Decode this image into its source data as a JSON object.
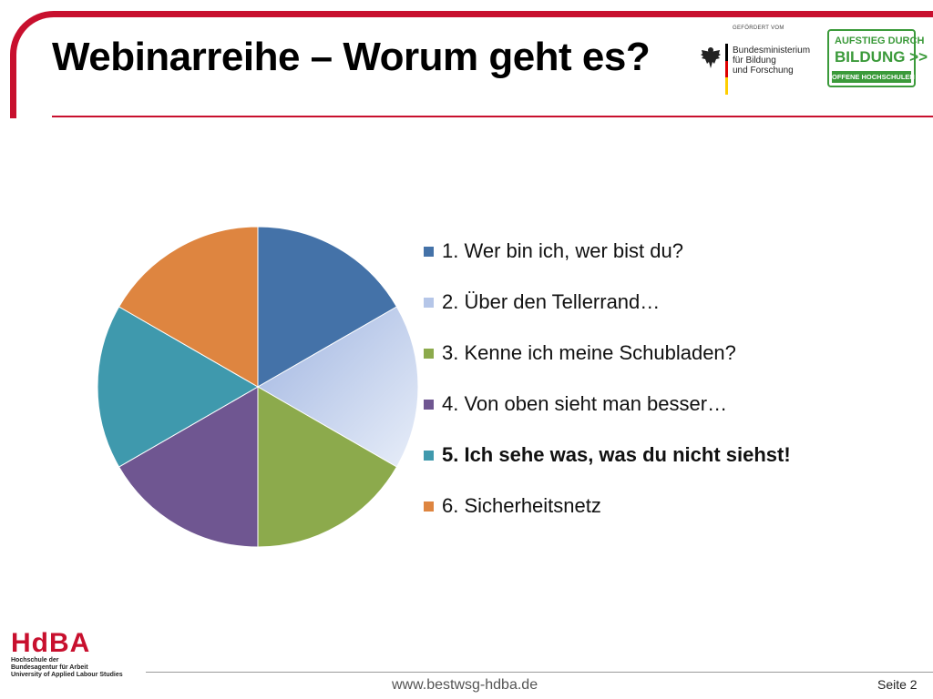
{
  "slide": {
    "title": "Webinarreihe – Worum geht es?",
    "accent_color": "#c8102e"
  },
  "sponsor": {
    "caption": "GEFÖRDERT VOM",
    "ministry_lines": [
      "Bundesministerium",
      "für Bildung",
      "und Forschung"
    ],
    "eagle_icon": "federal-eagle-icon"
  },
  "aufstieg_logo": {
    "line1": "AUFSTIEG DURCH",
    "line2": "BILDUNG >>",
    "line3": "OFFENE HOCHSCHULEN",
    "color": "#3b9a3a"
  },
  "chart_data": {
    "type": "pie",
    "title": "",
    "categories": [
      "1.  Wer bin ich, wer bist du?",
      "2. Über den Tellerrand…",
      "3. Kenne ich meine Schubladen?",
      "4. Von oben sieht man besser…",
      "5. Ich sehe was, was du nicht siehst!",
      "6. Sicherheitsnetz"
    ],
    "values": [
      1,
      1,
      1,
      1,
      1,
      1
    ],
    "colors": [
      "#4472a8",
      "#b5c6e8",
      "#8caa4c",
      "#6f5691",
      "#3f99ad",
      "#de8540"
    ],
    "highlighted_index": 4,
    "legend_position": "right"
  },
  "footer": {
    "logo_word": "HdBA",
    "logo_sub": [
      "Hochschule der",
      "Bundesagentur für Arbeit",
      "University of Applied Labour Studies"
    ],
    "url": "www.bestwsg-hdba.de",
    "page_label": "Seite 2"
  }
}
